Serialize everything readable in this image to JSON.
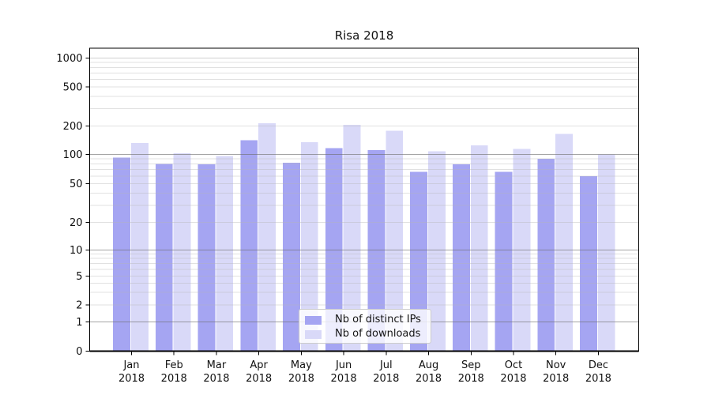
{
  "chart_data": {
    "type": "bar",
    "title": "Risa 2018",
    "categories": [
      "Jan 2018",
      "Feb 2018",
      "Mar 2018",
      "Apr 2018",
      "May 2018",
      "Jun 2018",
      "Jul 2018",
      "Aug 2018",
      "Sep 2018",
      "Oct 2018",
      "Nov 2018",
      "Dec 2018"
    ],
    "series": [
      {
        "name": "Nb of distinct IPs",
        "color": "#a5a5f2",
        "values": [
          93,
          80,
          79,
          142,
          82,
          117,
          111,
          66,
          79,
          66,
          90,
          60
        ]
      },
      {
        "name": "Nb of downloads",
        "color": "#d9d9f8",
        "values": [
          132,
          103,
          96,
          213,
          135,
          205,
          179,
          108,
          125,
          114,
          165,
          100
        ]
      }
    ],
    "y_axis": {
      "scale": "symlog",
      "tick_values": [
        0,
        1,
        2,
        5,
        10,
        20,
        50,
        100,
        200,
        500,
        1000
      ],
      "tick_labels": [
        "0",
        "1",
        "2",
        "5",
        "10",
        "20",
        "50",
        "100",
        "200",
        "500",
        "1000"
      ],
      "ylim": [
        0,
        1400
      ]
    },
    "x_axis": {
      "tick_labels": [
        "Jan 2018",
        "Feb 2018",
        "Mar 2018",
        "Apr 2018",
        "May 2018",
        "Jun 2018",
        "Jul 2018",
        "Aug 2018",
        "Sep 2018",
        "Oct 2018",
        "Nov 2018",
        "Dec 2018"
      ]
    },
    "grid": true,
    "legend_position": "lower-center-inside",
    "colors": {
      "major_gridline": "#a0a0a0",
      "minor_gridline": "#e8e8e8",
      "spine": "#000000",
      "tick_text": "#111111"
    }
  }
}
